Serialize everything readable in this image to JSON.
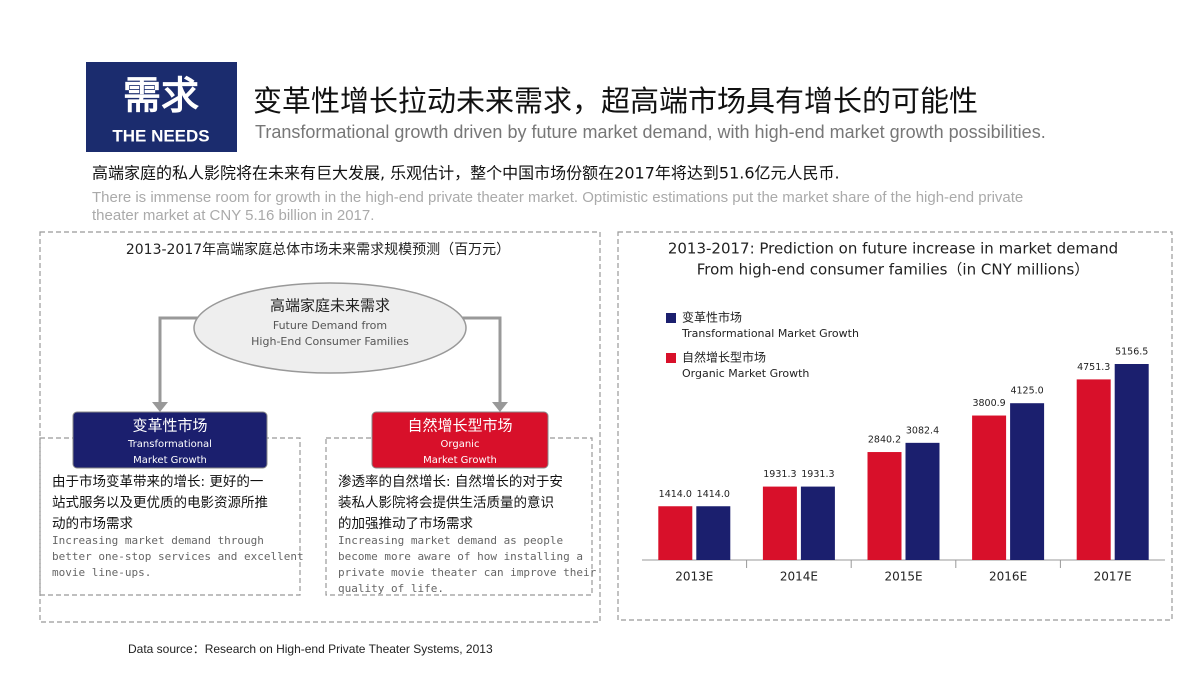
{
  "header": {
    "badge_cn": "需求",
    "badge_en": "THE NEEDS",
    "title": "变革性增长拉动未来需求，超高端市场具有增长的可能性",
    "subtitle": "Transformational growth driven by future market demand, with high-end market growth possibilities."
  },
  "intro": {
    "text": "高端家庭的私人影院将在未来有巨大发展, 乐观估计，整个中国市场份额在2017年将达到51.6亿元人民币.",
    "text_en_lines": [
      "There is immense room for growth in the high-end private theater market.  Optimistic estimations put the market share of the high-end private",
      "theater market at CNY 5.16 billion in 2017."
    ]
  },
  "diagram": {
    "title": "2013-2017年高端家庭总体市场未来需求规模预测（百万元）",
    "center": {
      "label": "高端家庭未来需求",
      "lines_en": [
        "Future Demand from",
        "High-End Consumer Families"
      ]
    },
    "left": {
      "label": "变革性市场",
      "lines_en": [
        "Transformational",
        "Market Growth"
      ],
      "desc_lines": [
        "由于市场变革带来的增长: 更好的一",
        "站式服务以及更优质的电影资源所推",
        "动的市场需求"
      ],
      "desc_en_lines": [
        "Increasing market demand through",
        "better one-stop services and excellent",
        "movie line-ups."
      ]
    },
    "right": {
      "label": "自然增长型市场",
      "lines_en": [
        "Organic",
        "Market Growth"
      ],
      "desc_lines": [
        "渗透率的自然增长: 自然增长的对于安",
        "装私人影院将会提供生活质量的意识",
        "的加强推动了市场需求"
      ],
      "desc_en_lines": [
        "Increasing market demand as people",
        "become more aware of how installing a",
        "private movie theater can improve their",
        "quality of life."
      ]
    }
  },
  "chart_data": {
    "type": "bar",
    "title": [
      "2013-2017: Prediction on future increase in market demand",
      "From high-end consumer families（in CNY millions）"
    ],
    "categories": [
      "2013E",
      "2014E",
      "2015E",
      "2016E",
      "2017E"
    ],
    "series": [
      {
        "name": "变革性市场",
        "name_en": "Transformational Market Growth",
        "color": "#1b1f6e",
        "values": [
          1414,
          1931.3,
          3082.4,
          4125,
          5156.5
        ],
        "value_labels": [
          "1414.0",
          "1931.3",
          "3082.4",
          "4125.0",
          "5156.5"
        ]
      },
      {
        "name": "自然增长型市场",
        "name_en": "Organic Market Growth",
        "color": "#d8102a",
        "values": [
          1414,
          1931.3,
          2840.2,
          3800.9,
          4751.3
        ],
        "value_labels": [
          "1414.0",
          "1931.3",
          "2840.2",
          "3800.9",
          "4751.3"
        ]
      }
    ]
  },
  "source": "Data source：Research on High-end Private Theater Systems, 2013"
}
